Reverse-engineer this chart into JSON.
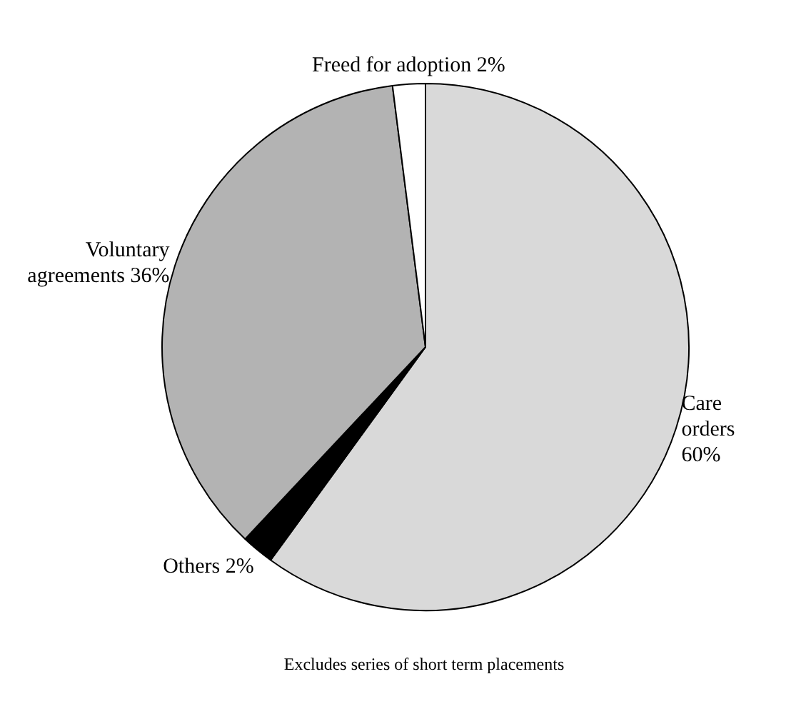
{
  "chart_data": {
    "type": "pie",
    "categories": [
      "Care orders",
      "Others",
      "Voluntary agreements",
      "Freed for adoption"
    ],
    "values": [
      60,
      2,
      36,
      2
    ],
    "colors": [
      "#d9d9d9",
      "#000000",
      "#b3b3b3",
      "#ffffff"
    ],
    "value_labels": [
      "60%",
      "2%",
      "36%",
      "2%"
    ],
    "annotations": [
      "Excludes series of short term placements"
    ]
  }
}
